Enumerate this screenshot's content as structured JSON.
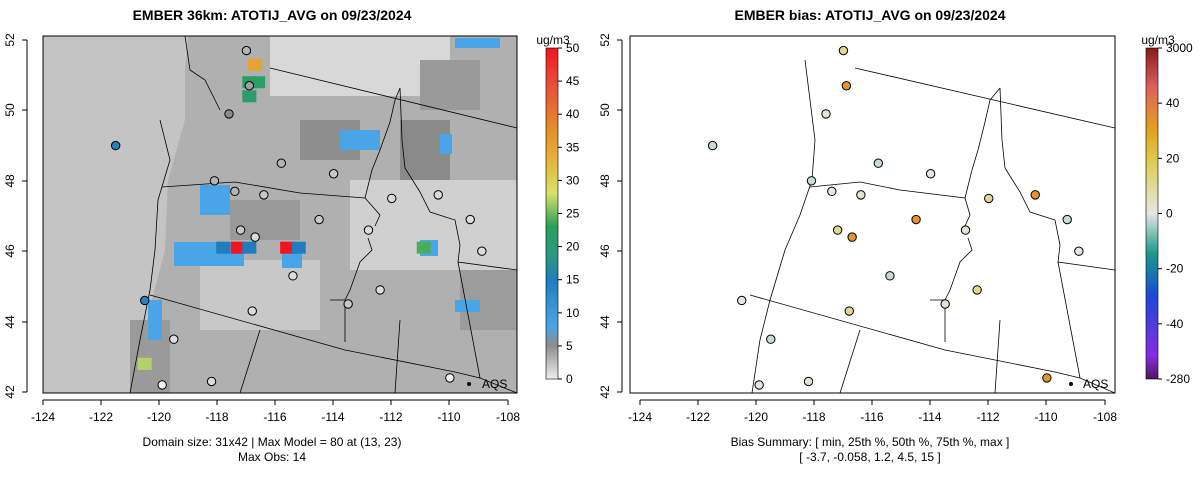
{
  "chart_data": [
    {
      "type": "heatmap",
      "title": "EMBER 36km: ATOTIJ_AVG on 09/23/2024",
      "legend_unit": "ug/m3",
      "legend_placement": "right",
      "colorbar_ticks": [
        "50",
        "45",
        "40",
        "35",
        "30",
        "25",
        "20",
        "15",
        "10",
        "5",
        "0"
      ],
      "colorbar_range": [
        0,
        50
      ],
      "xlim": [
        -124,
        -108
      ],
      "ylim": [
        42,
        52
      ],
      "x_ticks": [
        "-124",
        "-122",
        "-120",
        "-118",
        "-116",
        "-114",
        "-112",
        "-110",
        "-108"
      ],
      "y_ticks": [
        "42",
        "44",
        "46",
        "48",
        "50",
        "52"
      ],
      "caption_line1": "Domain size: 31x42 | Max Model = 80 at (13, 23)",
      "caption_line2": "Max Obs: 14",
      "network_label": "AQS",
      "highlight_cells": [
        {
          "lon": -117.3,
          "lat": 46.1,
          "value": 50
        },
        {
          "lon": -115.6,
          "lat": 46.1,
          "value": 50
        },
        {
          "lon": -116.7,
          "lat": 51.3,
          "value": 35
        },
        {
          "lon": -116.9,
          "lat": 50.8,
          "value": 22
        },
        {
          "lon": -116.6,
          "lat": 50.8,
          "value": 22
        },
        {
          "lon": -116.9,
          "lat": 50.4,
          "value": 21
        },
        {
          "lon": -110.9,
          "lat": 46.1,
          "value": 24
        },
        {
          "lon": -120.5,
          "lat": 42.8,
          "value": 27
        },
        {
          "lon": -117.8,
          "lat": 46.1,
          "value": 15
        },
        {
          "lon": -116.9,
          "lat": 46.1,
          "value": 15
        },
        {
          "lon": -115.2,
          "lat": 46.1,
          "value": 15
        }
      ],
      "station_values": [
        {
          "lon": -121.5,
          "lat": 49.0,
          "value": 14
        },
        {
          "lon": -120.5,
          "lat": 44.6,
          "value": 14
        },
        {
          "lon": -117.6,
          "lat": 49.9,
          "value": 5
        },
        {
          "lon": -117.0,
          "lat": 51.7,
          "value": 3
        },
        {
          "lon": -116.9,
          "lat": 50.7,
          "value": 4
        },
        {
          "lon": -118.1,
          "lat": 48.0,
          "value": 3
        },
        {
          "lon": -117.4,
          "lat": 47.7,
          "value": 3
        },
        {
          "lon": -116.4,
          "lat": 47.6,
          "value": 2
        },
        {
          "lon": -117.2,
          "lat": 46.6,
          "value": 2
        },
        {
          "lon": -116.7,
          "lat": 46.4,
          "value": 1
        },
        {
          "lon": -115.4,
          "lat": 45.3,
          "value": 1
        },
        {
          "lon": -114.0,
          "lat": 48.2,
          "value": 2
        },
        {
          "lon": -112.8,
          "lat": 46.6,
          "value": 1
        },
        {
          "lon": -112.0,
          "lat": 47.5,
          "value": 1
        },
        {
          "lon": -110.4,
          "lat": 47.6,
          "value": 1
        },
        {
          "lon": -109.3,
          "lat": 46.9,
          "value": 1
        },
        {
          "lon": -108.9,
          "lat": 46.0,
          "value": 1
        },
        {
          "lon": -113.5,
          "lat": 44.5,
          "value": 2
        },
        {
          "lon": -112.4,
          "lat": 44.9,
          "value": 1
        },
        {
          "lon": -110.0,
          "lat": 42.4,
          "value": 0
        },
        {
          "lon": -119.5,
          "lat": 43.5,
          "value": 1
        },
        {
          "lon": -119.9,
          "lat": 42.2,
          "value": 0
        },
        {
          "lon": -118.2,
          "lat": 42.3,
          "value": 1
        },
        {
          "lon": -116.8,
          "lat": 44.3,
          "value": 1
        },
        {
          "lon": -114.5,
          "lat": 46.9,
          "value": 2
        },
        {
          "lon": -115.8,
          "lat": 48.5,
          "value": 3
        }
      ]
    },
    {
      "type": "scatter",
      "title": "EMBER bias: ATOTIJ_AVG on 09/23/2024",
      "legend_unit": "ug/m3",
      "legend_placement": "right",
      "colorbar_ticks": [
        "3000",
        "40",
        "20",
        "0",
        "-20",
        "-40",
        "-280"
      ],
      "xlim": [
        -124,
        -108
      ],
      "ylim": [
        42,
        52
      ],
      "x_ticks": [
        "-124",
        "-122",
        "-120",
        "-118",
        "-116",
        "-114",
        "-112",
        "-110",
        "-108"
      ],
      "y_ticks": [
        "42",
        "44",
        "46",
        "48",
        "50",
        "52"
      ],
      "caption_line1": "Bias Summary: [ min, 25th %, 50th %, 75th %, max ]",
      "caption_line2": "[ -3.7,   -0.058,   1.2,   4.5,   15 ]",
      "bias_summary": {
        "min": -3.7,
        "p25": -0.058,
        "p50": 1.2,
        "p75": 4.5,
        "max": 15
      },
      "network_label": "AQS"
    }
  ]
}
